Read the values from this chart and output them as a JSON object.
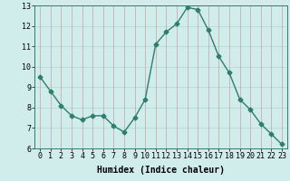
{
  "x": [
    0,
    1,
    2,
    3,
    4,
    5,
    6,
    7,
    8,
    9,
    10,
    11,
    12,
    13,
    14,
    15,
    16,
    17,
    18,
    19,
    20,
    21,
    22,
    23
  ],
  "y": [
    9.5,
    8.8,
    8.1,
    7.6,
    7.4,
    7.6,
    7.6,
    7.1,
    6.8,
    7.5,
    8.4,
    11.1,
    11.7,
    12.1,
    12.9,
    12.8,
    11.8,
    10.5,
    9.7,
    8.4,
    7.9,
    7.2,
    6.7,
    6.2
  ],
  "line_color": "#2e7d6e",
  "marker": "D",
  "marker_size": 2.5,
  "bg_color": "#d0eceb",
  "grid_color_h": "#aed8d4",
  "grid_color_v": "#c8a0a0",
  "xlabel": "Humidex (Indice chaleur)",
  "ylim": [
    6,
    13
  ],
  "xlim": [
    -0.5,
    23.5
  ],
  "yticks": [
    6,
    7,
    8,
    9,
    10,
    11,
    12,
    13
  ],
  "xticks": [
    0,
    1,
    2,
    3,
    4,
    5,
    6,
    7,
    8,
    9,
    10,
    11,
    12,
    13,
    14,
    15,
    16,
    17,
    18,
    19,
    20,
    21,
    22,
    23
  ],
  "xlabel_fontsize": 7,
  "tick_fontsize": 6,
  "line_width": 1.0
}
